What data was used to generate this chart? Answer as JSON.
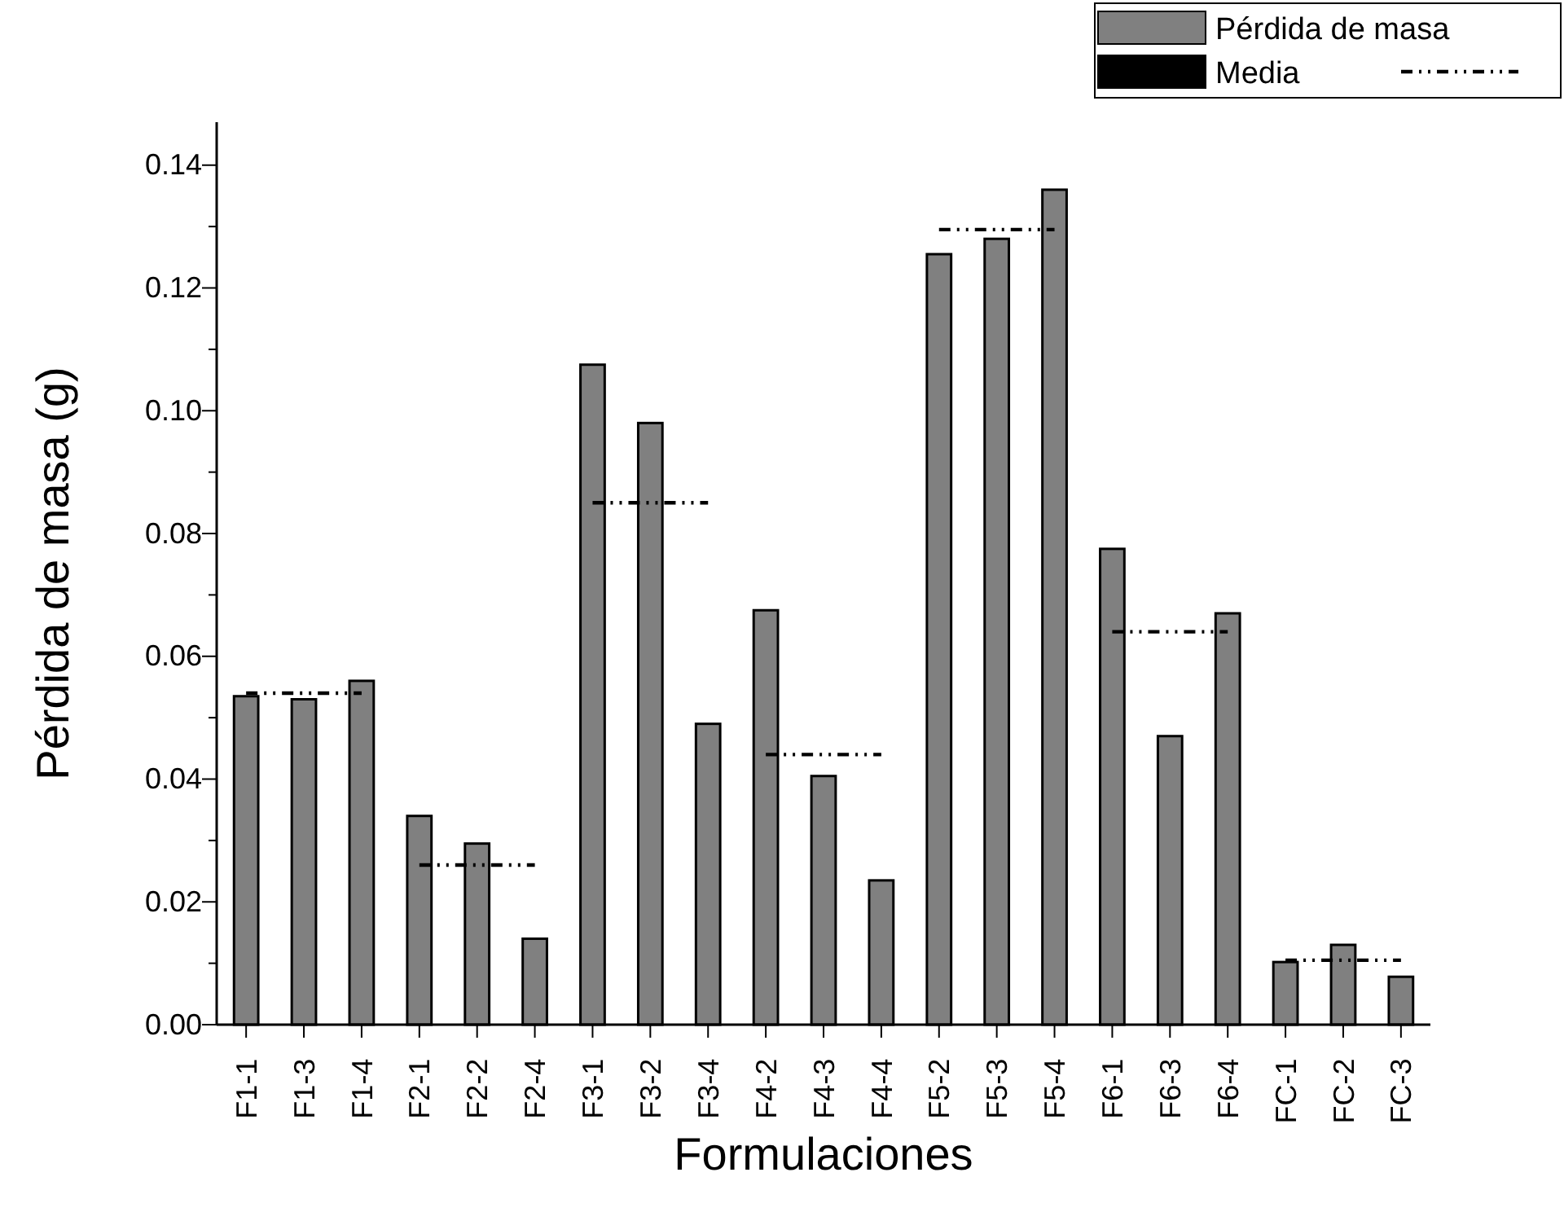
{
  "chart_data": {
    "type": "bar",
    "xlabel": "Formulaciones",
    "ylabel": "Pérdida de masa (g)",
    "categories": [
      "F1-1",
      "F1-3",
      "F1-4",
      "F2-1",
      "F2-2",
      "F2-4",
      "F3-1",
      "F3-2",
      "F3-4",
      "F4-2",
      "F4-3",
      "F4-4",
      "F5-2",
      "F5-3",
      "F5-4",
      "F6-1",
      "F6-3",
      "F6-4",
      "FC-1",
      "FC-2",
      "FC-3"
    ],
    "series": [
      {
        "name": "Pérdida de masa",
        "color": "#808080",
        "values": [
          0.0535,
          0.053,
          0.056,
          0.034,
          0.0295,
          0.014,
          0.1075,
          0.098,
          0.049,
          0.0675,
          0.0405,
          0.0235,
          0.1255,
          0.128,
          0.136,
          0.0775,
          0.047,
          0.067,
          0.0102,
          0.013,
          0.0078
        ]
      },
      {
        "name": "Media",
        "type": "line",
        "color": "#000000",
        "line_style": "dashed",
        "values": [
          0.054,
          0.054,
          0.054,
          null,
          null,
          null,
          null,
          null,
          null,
          null,
          null,
          null,
          null,
          null,
          null,
          null,
          null,
          null,
          null,
          null,
          null
        ]
      },
      {
        "type": "line",
        "color": "#000000",
        "line_style": "dashed",
        "values": [
          null,
          null,
          null,
          0.026,
          0.026,
          0.026,
          null,
          null,
          null,
          null,
          null,
          null,
          null,
          null,
          null,
          null,
          null,
          null,
          null,
          null,
          null
        ]
      },
      {
        "type": "line",
        "color": "#000000",
        "line_style": "dashed",
        "values": [
          null,
          null,
          null,
          null,
          null,
          null,
          0.085,
          0.085,
          0.085,
          null,
          null,
          null,
          null,
          null,
          null,
          null,
          null,
          null,
          null,
          null,
          null
        ]
      },
      {
        "type": "line",
        "color": "#000000",
        "line_style": "dashed",
        "values": [
          null,
          null,
          null,
          null,
          null,
          null,
          null,
          null,
          null,
          0.044,
          0.044,
          0.044,
          null,
          null,
          null,
          null,
          null,
          null,
          null,
          null,
          null
        ]
      },
      {
        "type": "line",
        "color": "#000000",
        "line_style": "dashed",
        "values": [
          null,
          null,
          null,
          null,
          null,
          null,
          null,
          null,
          null,
          null,
          null,
          null,
          0.1295,
          0.1295,
          0.1295,
          null,
          null,
          null,
          null,
          null,
          null
        ]
      },
      {
        "type": "line",
        "color": "#000000",
        "line_style": "dashed",
        "values": [
          null,
          null,
          null,
          null,
          null,
          null,
          null,
          null,
          null,
          null,
          null,
          null,
          null,
          null,
          null,
          0.064,
          0.064,
          0.064,
          null,
          null,
          null
        ]
      },
      {
        "type": "line",
        "color": "#000000",
        "line_style": "dashed",
        "values": [
          null,
          null,
          null,
          null,
          null,
          null,
          null,
          null,
          null,
          null,
          null,
          null,
          null,
          null,
          null,
          null,
          null,
          null,
          0.0105,
          0.0105,
          0.0105
        ]
      }
    ],
    "ylim": [
      0,
      0.147
    ],
    "yticks": [
      {
        "value": 0,
        "label": "0.00"
      },
      {
        "value": 0.01,
        "label": null
      },
      {
        "value": 0.02,
        "label": "0.02"
      },
      {
        "value": 0.03,
        "label": null
      },
      {
        "value": 0.04,
        "label": "0.04"
      },
      {
        "value": 0.05,
        "label": null
      },
      {
        "value": 0.06,
        "label": "0.06"
      },
      {
        "value": 0.07,
        "label": null
      },
      {
        "value": 0.08,
        "label": "0.08"
      },
      {
        "value": 0.09,
        "label": null
      },
      {
        "value": 0.1,
        "label": "0.10"
      },
      {
        "value": 0.11,
        "label": null
      },
      {
        "value": 0.12,
        "label": "0.12"
      },
      {
        "value": 0.13,
        "label": null
      },
      {
        "value": 0.14,
        "label": "0.14"
      }
    ],
    "grid": false,
    "legend": "top right"
  }
}
